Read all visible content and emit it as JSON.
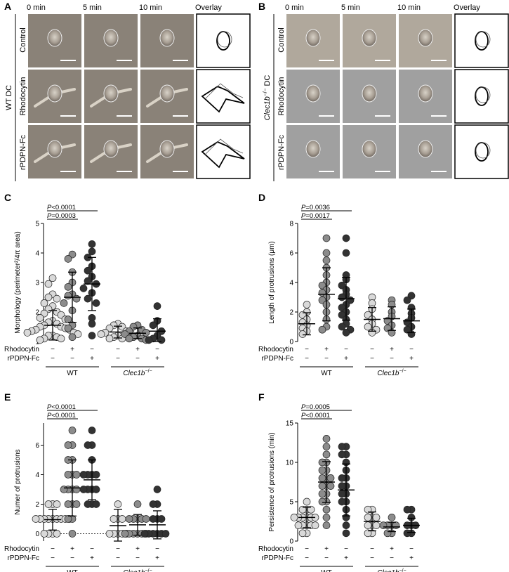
{
  "panel_letters": [
    "A",
    "B",
    "C",
    "D",
    "E",
    "F"
  ],
  "micro_A": {
    "group_label": "WT DC",
    "columns": [
      "0 min",
      "5 min",
      "10 min",
      "Overlay"
    ],
    "rows": [
      "Control",
      "Rhodocytin",
      "rPDPN-Fc"
    ]
  },
  "micro_B": {
    "group_label_gene": "Clec1b",
    "group_label_sup": "−/−",
    "group_label_suffix": " DC",
    "columns": [
      "0 min",
      "5 min",
      "10 min",
      "Overlay"
    ],
    "rows": [
      "Control",
      "Rhodocytin",
      "rPDPN-Fc"
    ]
  },
  "treatment_labels": [
    "Rhodocytin",
    "rPDPN-Fc"
  ],
  "group_labels": {
    "wt": "WT",
    "ko_gene": "Clec1b",
    "ko_sup": "−/−"
  },
  "colors": {
    "control": "#d9d9d9",
    "rhodocytin": "#8c8c8c",
    "rpdpn": "#333333",
    "ko_control": "#d9d9d9",
    "ko_rhodocytin": "#8c8c8c",
    "ko_rpdpn": "#333333"
  },
  "chart_data": [
    {
      "panel": "C",
      "type": "scatter",
      "ylabel": "Morphology (perimeter²/4π area)",
      "ylim": [
        1,
        5
      ],
      "yticks": [
        1,
        2,
        3,
        4,
        5
      ],
      "signs": [
        [
          "−",
          "+",
          "−",
          "−",
          "+",
          "−"
        ],
        [
          "−",
          "−",
          "+",
          "−",
          "−",
          "+"
        ]
      ],
      "pvalues": [
        {
          "text": "P<0.0001",
          "from": 0,
          "to": 2
        },
        {
          "text": "P=0.0003",
          "from": 0,
          "to": 1
        }
      ],
      "groups": [
        {
          "name": "WT control",
          "mean": 1.55,
          "sd": 0.5,
          "values": [
            3.15,
            2.95,
            2.6,
            2.5,
            2.45,
            2.3,
            2.2,
            2.1,
            2.0,
            1.95,
            1.9,
            1.8,
            1.75,
            1.7,
            1.65,
            1.6,
            1.55,
            1.5,
            1.5,
            1.45,
            1.4,
            1.4,
            1.35,
            1.3,
            1.3,
            1.25,
            1.2,
            1.2,
            1.15,
            1.1,
            1.1,
            1.05
          ]
        },
        {
          "name": "WT rhodocytin",
          "mean": 2.5,
          "sd": 0.85,
          "values": [
            3.95,
            3.8,
            3.35,
            3.0,
            2.85,
            2.6,
            2.55,
            2.45,
            2.3,
            2.05,
            1.75,
            1.55,
            1.45,
            1.15
          ]
        },
        {
          "name": "WT rPDPN-Fc",
          "mean": 2.95,
          "sd": 0.9,
          "values": [
            4.3,
            4.05,
            3.85,
            3.55,
            3.4,
            3.2,
            3.05,
            2.95,
            2.8,
            2.65,
            2.45,
            2.3,
            1.8,
            1.6,
            1.2
          ]
        },
        {
          "name": "KO control",
          "mean": 1.32,
          "sd": 0.2,
          "values": [
            1.6,
            1.55,
            1.5,
            1.45,
            1.35,
            1.3,
            1.3,
            1.25,
            1.2,
            1.15,
            1.1,
            1.1
          ]
        },
        {
          "name": "KO rhodocytin",
          "mean": 1.28,
          "sd": 0.18,
          "values": [
            1.55,
            1.5,
            1.4,
            1.35,
            1.3,
            1.25,
            1.2,
            1.15,
            1.1,
            1.1,
            1.05
          ]
        },
        {
          "name": "KO rPDPN-Fc",
          "mean": 1.35,
          "sd": 0.42,
          "values": [
            2.2,
            1.7,
            1.55,
            1.35,
            1.2,
            1.1,
            1.05,
            1.05
          ]
        }
      ]
    },
    {
      "panel": "D",
      "type": "scatter",
      "ylabel": "Length of protrusions (μm)",
      "ylim": [
        0,
        8
      ],
      "yticks": [
        0,
        2,
        4,
        6,
        8
      ],
      "signs": [
        [
          "−",
          "+",
          "−",
          "−",
          "+",
          "−"
        ],
        [
          "−",
          "−",
          "+",
          "−",
          "−",
          "+"
        ]
      ],
      "pvalues": [
        {
          "text": "P=0.0036",
          "from": 0,
          "to": 2
        },
        {
          "text": "P=0.0017",
          "from": 0,
          "to": 1
        }
      ],
      "groups": [
        {
          "name": "WT control",
          "mean": 1.2,
          "sd": 0.75,
          "values": [
            2.5,
            2.0,
            1.8,
            1.5,
            1.3,
            1.1,
            0.9,
            0.7,
            0.5
          ]
        },
        {
          "name": "WT rhodocytin",
          "mean": 3.2,
          "sd": 1.8,
          "values": [
            7.0,
            6.0,
            5.5,
            5.0,
            4.5,
            4.0,
            3.8,
            3.5,
            3.3,
            3.0,
            2.8,
            2.5,
            2.0,
            1.5,
            1.0,
            0.8
          ]
        },
        {
          "name": "WT rPDPN-Fc",
          "mean": 2.9,
          "sd": 1.45,
          "values": [
            7.0,
            6.0,
            4.5,
            4.2,
            3.8,
            3.5,
            3.2,
            3.0,
            2.8,
            2.5,
            2.3,
            2.0,
            1.8,
            1.5,
            1.2,
            1.0,
            0.8,
            0.6
          ]
        },
        {
          "name": "KO control",
          "mean": 1.5,
          "sd": 0.8,
          "values": [
            3.0,
            2.6,
            2.2,
            1.8,
            1.5,
            1.2,
            1.0,
            0.8,
            0.6
          ]
        },
        {
          "name": "KO rhodocytin",
          "mean": 1.55,
          "sd": 0.8,
          "values": [
            2.8,
            2.5,
            2.0,
            1.7,
            1.4,
            1.1,
            0.9,
            0.6
          ]
        },
        {
          "name": "KO rPDPN-Fc",
          "mean": 1.4,
          "sd": 0.8,
          "values": [
            3.1,
            2.8,
            2.3,
            1.9,
            1.6,
            1.3,
            1.0,
            0.8,
            0.5
          ]
        }
      ]
    },
    {
      "panel": "E",
      "type": "scatter",
      "ylabel": "Numer of protrusions",
      "ylim": [
        -0.5,
        7.5
      ],
      "yticks": [
        0,
        2,
        4,
        6
      ],
      "dotted_y": 0,
      "signs": [
        [
          "−",
          "+",
          "−",
          "−",
          "+",
          "−"
        ],
        [
          "−",
          "−",
          "+",
          "−",
          "−",
          "+"
        ]
      ],
      "pvalues": [
        {
          "text": "P<0.0001",
          "from": 0,
          "to": 2
        },
        {
          "text": "P<0.0001",
          "from": 0,
          "to": 1
        }
      ],
      "groups": [
        {
          "name": "WT control",
          "mean": 0.95,
          "sd": 0.7,
          "values": [
            2,
            2,
            2,
            1,
            1,
            1,
            1,
            1,
            1,
            1,
            1,
            1,
            0,
            0,
            0,
            0
          ]
        },
        {
          "name": "WT rhodocytin",
          "mean": 3.1,
          "sd": 1.9,
          "values": [
            7,
            6,
            6,
            5,
            5,
            4,
            4,
            4,
            3,
            3,
            3,
            3,
            2,
            2,
            2,
            1,
            1,
            0
          ]
        },
        {
          "name": "WT rPDPN-Fc",
          "mean": 3.65,
          "sd": 1.35,
          "values": [
            7,
            6,
            6,
            5,
            4,
            4,
            4,
            4,
            3,
            3,
            3,
            3,
            2,
            2,
            2
          ]
        },
        {
          "name": "KO control",
          "mean": 0.55,
          "sd": 1.1,
          "values": [
            2,
            1,
            1,
            1,
            0,
            0,
            0,
            0,
            0
          ]
        },
        {
          "name": "KO rhodocytin",
          "mean": 0.6,
          "sd": 0.7,
          "values": [
            2,
            1,
            1,
            1,
            1,
            1,
            0,
            0,
            0,
            0,
            0,
            0
          ]
        },
        {
          "name": "KO rPDPN-Fc",
          "mean": 0.6,
          "sd": 0.95,
          "values": [
            3,
            2,
            2,
            1,
            1,
            1,
            0,
            0,
            0,
            0,
            0,
            0
          ]
        }
      ]
    },
    {
      "panel": "F",
      "type": "scatter",
      "ylabel": "Persistence of protrusions (min)",
      "ylim": [
        0,
        15
      ],
      "yticks": [
        0,
        5,
        10,
        15
      ],
      "signs": [
        [
          "−",
          "+",
          "−",
          "−",
          "+",
          "−"
        ],
        [
          "−",
          "−",
          "+",
          "−",
          "−",
          "+"
        ]
      ],
      "pvalues": [
        {
          "text": "P=0.0005",
          "from": 0,
          "to": 2
        },
        {
          "text": "P<0.0001",
          "from": 0,
          "to": 1
        }
      ],
      "groups": [
        {
          "name": "WT control",
          "mean": 3.0,
          "sd": 1.3,
          "values": [
            5,
            4,
            4,
            4,
            3,
            3,
            3,
            3,
            3,
            3,
            2,
            2,
            2,
            2,
            2,
            1,
            1
          ]
        },
        {
          "name": "WT rhodocytin",
          "mean": 7.5,
          "sd": 2.6,
          "values": [
            13,
            12,
            11,
            10,
            10,
            9,
            9,
            8,
            8,
            8,
            7,
            7,
            7,
            6,
            6,
            5,
            5,
            4,
            3,
            2
          ]
        },
        {
          "name": "WT rPDPN-Fc",
          "mean": 6.5,
          "sd": 3.3,
          "values": [
            12,
            12,
            11,
            11,
            10,
            9,
            8,
            8,
            7,
            7,
            6,
            6,
            5,
            5,
            4,
            3,
            2,
            1
          ]
        },
        {
          "name": "KO control",
          "mean": 2.5,
          "sd": 1.2,
          "values": [
            4,
            4,
            3,
            3,
            3,
            2,
            2,
            2,
            1,
            1
          ]
        },
        {
          "name": "KO rhodocytin",
          "mean": 1.8,
          "sd": 0.6,
          "values": [
            3,
            2,
            2,
            2,
            2,
            1,
            1
          ]
        },
        {
          "name": "KO rPDPN-Fc",
          "mean": 2.0,
          "sd": 0.9,
          "values": [
            4,
            4,
            3,
            2,
            2,
            2,
            1,
            1
          ]
        }
      ]
    }
  ]
}
